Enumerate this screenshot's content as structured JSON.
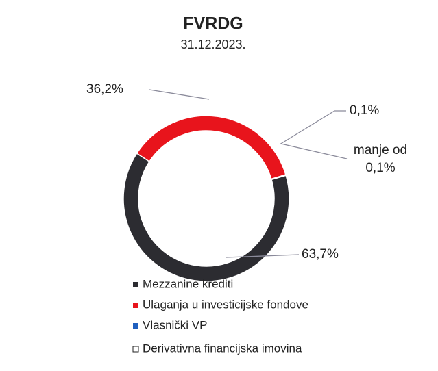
{
  "chart_data": {
    "type": "pie",
    "donut": true,
    "title": "FVRDG",
    "subtitle": "31.12.2023.",
    "series": [
      {
        "name": "Mezzanine krediti",
        "color": "#2c2c31",
        "value": 63.7,
        "value_label": "63,7%"
      },
      {
        "name": "Ulaganja u investicijske fondove",
        "color": "#e8141c",
        "value": 36.2,
        "value_label": "36,2%"
      },
      {
        "name": "Vlasnički VP",
        "color": "#1f5fbf",
        "value": 0.1,
        "value_label": "0,1%"
      },
      {
        "name": "Derivativna financijska imovina",
        "color": "#ffffff",
        "value": 0.05,
        "value_label": "manje od 0,1%"
      }
    ]
  }
}
